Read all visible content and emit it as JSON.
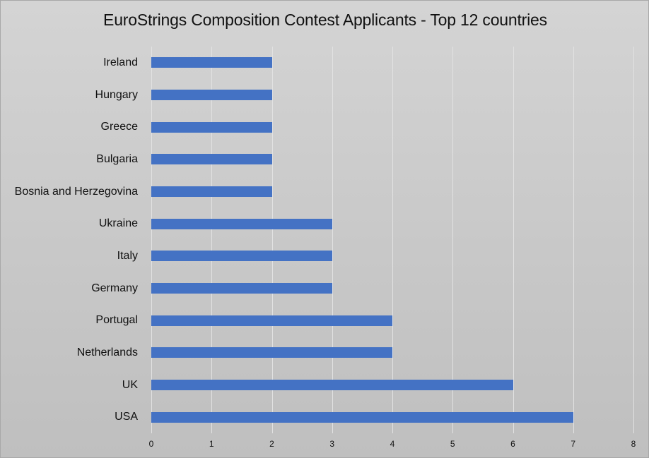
{
  "chart_data": {
    "type": "bar",
    "orientation": "horizontal",
    "title": "EuroStrings Composition Contest Applicants - Top 12 countries",
    "xlabel": "",
    "ylabel": "",
    "xlim": [
      0,
      8
    ],
    "x_ticks": [
      "0",
      "1",
      "2",
      "3",
      "4",
      "5",
      "6",
      "7",
      "8"
    ],
    "grid": "vertical",
    "legend": "none",
    "bar_color": "#4472c4",
    "categories": [
      "Ireland",
      "Hungary",
      "Greece",
      "Bulgaria",
      "Bosnia and Herzegovina",
      "Ukraine",
      "Italy",
      "Germany",
      "Portugal",
      "Netherlands",
      "UK",
      "USA"
    ],
    "values": [
      2,
      2,
      2,
      2,
      2,
      3,
      3,
      3,
      4,
      4,
      6,
      7
    ]
  }
}
